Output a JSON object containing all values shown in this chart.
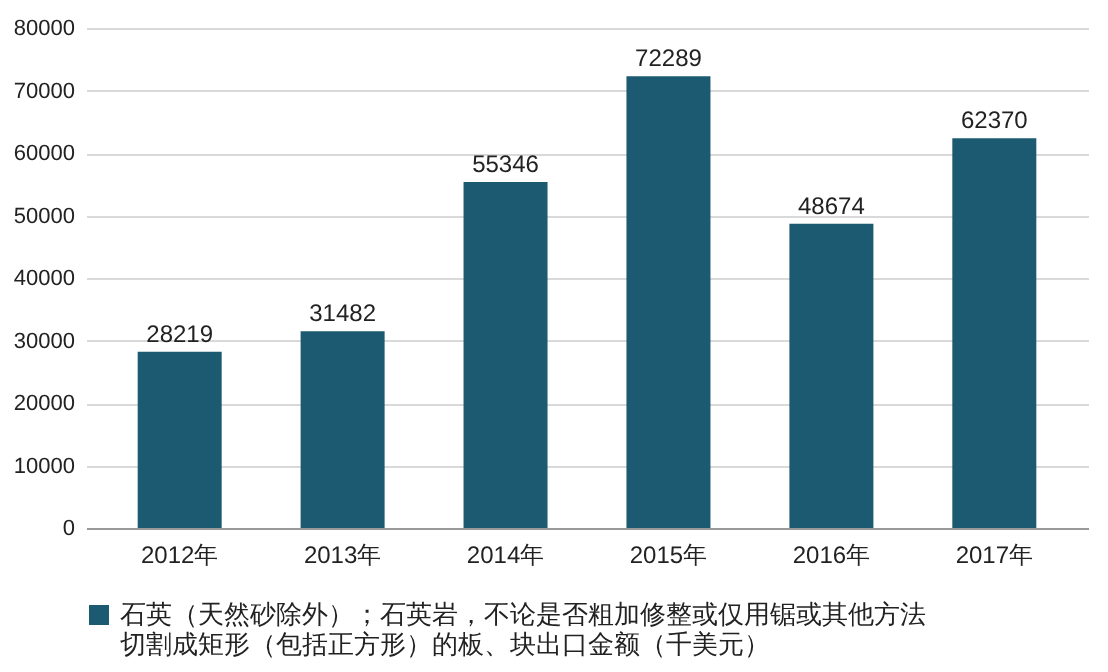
{
  "chart_data": {
    "type": "bar",
    "categories": [
      "2012年",
      "2013年",
      "2014年",
      "2015年",
      "2016年",
      "2017年"
    ],
    "series": [
      {
        "name": "石英（天然砂除外）；石英岩，不论是否粗加修整或仅用锯或其他方法切割成矩形（包括正方形）的板、块出口金额（千美元）",
        "color": "#1b5a70",
        "values": [
          28219,
          31482,
          55346,
          72289,
          48674,
          62370
        ]
      }
    ],
    "ylim": [
      0,
      80000
    ],
    "yticks": [
      0,
      10000,
      20000,
      30000,
      40000,
      50000,
      60000,
      70000,
      80000
    ],
    "grid": "y",
    "legend": "bottom",
    "data_labels": true
  }
}
